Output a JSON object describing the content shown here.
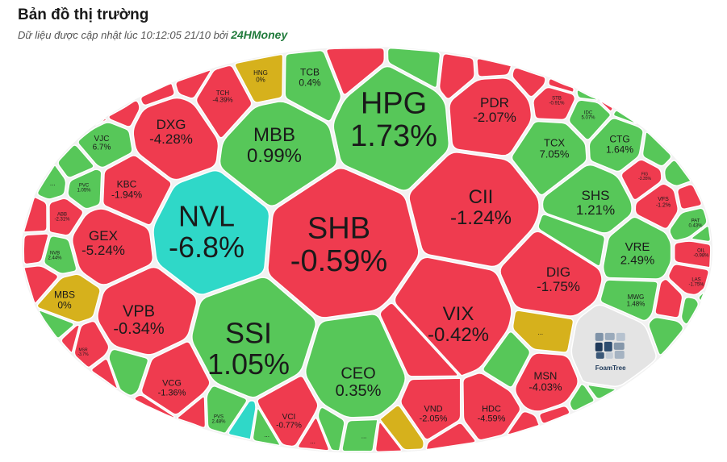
{
  "header": {
    "title": "Bản đồ thị trường",
    "subtitle_prefix": "Dữ liệu được cập nhật lúc 10:12:05 21/10 bởi",
    "brand": "24HMoney"
  },
  "colors": {
    "up": "#57c759",
    "down": "#ef3b4f",
    "flat": "#d6b11c",
    "floor": "#2fd8c8",
    "stroke": "#ffffff"
  },
  "logo": {
    "label": "FoamTree"
  },
  "cells": [
    {
      "id": "shb",
      "symbol": "SHB",
      "change": "-0.59%",
      "status": "down"
    },
    {
      "id": "hpg",
      "symbol": "HPG",
      "change": "1.73%",
      "status": "up"
    },
    {
      "id": "nvl",
      "symbol": "NVL",
      "change": "-6.8%",
      "status": "floor"
    },
    {
      "id": "ssi",
      "symbol": "SSI",
      "change": "1.05%",
      "status": "up"
    },
    {
      "id": "mbb",
      "symbol": "MBB",
      "change": "0.99%",
      "status": "up"
    },
    {
      "id": "cii",
      "symbol": "CII",
      "change": "-1.24%",
      "status": "down"
    },
    {
      "id": "vix",
      "symbol": "VIX",
      "change": "-0.42%",
      "status": "down"
    },
    {
      "id": "ceo",
      "symbol": "CEO",
      "change": "0.35%",
      "status": "up"
    },
    {
      "id": "vpb",
      "symbol": "VPB",
      "change": "-0.34%",
      "status": "down"
    },
    {
      "id": "gex",
      "symbol": "GEX",
      "change": "-5.24%",
      "status": "down"
    },
    {
      "id": "dxg",
      "symbol": "DXG",
      "change": "-4.28%",
      "status": "down"
    },
    {
      "id": "pdr",
      "symbol": "PDR",
      "change": "-2.07%",
      "status": "down"
    },
    {
      "id": "dig",
      "symbol": "DIG",
      "change": "-1.75%",
      "status": "down"
    },
    {
      "id": "shs",
      "symbol": "SHS",
      "change": "1.21%",
      "status": "up"
    },
    {
      "id": "vre",
      "symbol": "VRE",
      "change": "2.49%",
      "status": "up"
    },
    {
      "id": "tcx",
      "symbol": "TCX",
      "change": "7.05%",
      "status": "up"
    },
    {
      "id": "ctg",
      "symbol": "CTG",
      "change": "1.64%",
      "status": "up"
    },
    {
      "id": "msn",
      "symbol": "MSN",
      "change": "-4.03%",
      "status": "down"
    },
    {
      "id": "hdc",
      "symbol": "HDC",
      "change": "-4.59%",
      "status": "down"
    },
    {
      "id": "vnd",
      "symbol": "VND",
      "change": "-2.05%",
      "status": "down"
    },
    {
      "id": "vcg",
      "symbol": "VCG",
      "change": "-1.36%",
      "status": "down"
    },
    {
      "id": "vci",
      "symbol": "VCI",
      "change": "-0.77%",
      "status": "down"
    },
    {
      "id": "tcb",
      "symbol": "TCB",
      "change": "0.4%",
      "status": "up"
    },
    {
      "id": "tch",
      "symbol": "TCH",
      "change": "-4.39%",
      "status": "down"
    },
    {
      "id": "hng",
      "symbol": "HNG",
      "change": "0%",
      "status": "flat"
    },
    {
      "id": "kbc",
      "symbol": "KBC",
      "change": "-1.94%",
      "status": "down"
    },
    {
      "id": "vjc",
      "symbol": "VJC",
      "change": "6.7%",
      "status": "up"
    },
    {
      "id": "mbs",
      "symbol": "MBS",
      "change": "0%",
      "status": "flat"
    },
    {
      "id": "mwg",
      "symbol": "MWG",
      "change": "1.48%",
      "status": "up"
    },
    {
      "id": "stb",
      "symbol": "STB",
      "change": "-0.91%",
      "status": "down"
    },
    {
      "id": "idc",
      "symbol": "IDC",
      "change": "5.07%",
      "status": "up"
    },
    {
      "id": "vfs",
      "symbol": "VFS",
      "change": "-1.2%",
      "status": "down"
    },
    {
      "id": "pat",
      "symbol": "PAT",
      "change": "0.43%",
      "status": "up"
    },
    {
      "id": "oil",
      "symbol": "OIL",
      "change": "-0.98%",
      "status": "down"
    },
    {
      "id": "las",
      "symbol": "LAS",
      "change": "-1.75%",
      "status": "down"
    },
    {
      "id": "pvc",
      "symbol": "PVC",
      "change": "1.05%",
      "status": "up"
    },
    {
      "id": "abb",
      "symbol": "ABB",
      "change": "-2.31%",
      "status": "down"
    },
    {
      "id": "nvb",
      "symbol": "NVB",
      "change": "2.44%",
      "status": "up"
    },
    {
      "id": "pvs",
      "symbol": "PVS",
      "change": "2.48%",
      "status": "up"
    },
    {
      "id": "fig",
      "symbol": "FIG",
      "change": "-3.35%",
      "status": "down"
    },
    {
      "id": "msr",
      "symbol": "MSR",
      "change": "-3.7%",
      "status": "down"
    }
  ],
  "minor_label": "..."
}
